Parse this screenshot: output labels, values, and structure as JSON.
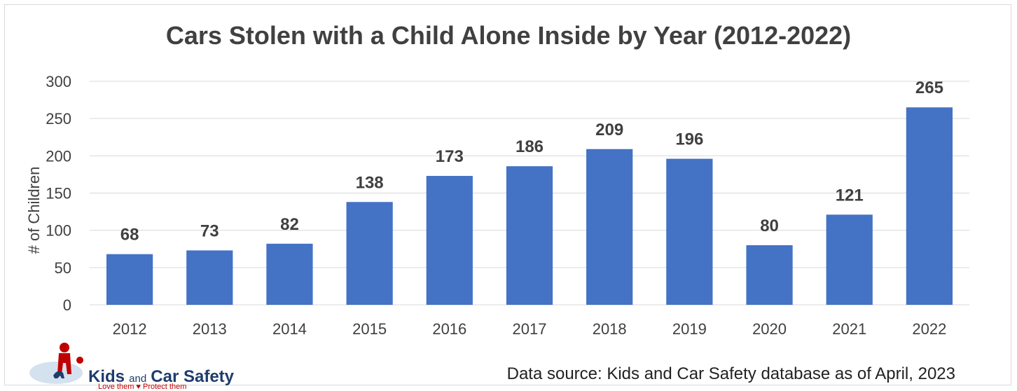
{
  "chart_data": {
    "type": "bar",
    "title": "Cars Stolen with a Child Alone Inside by Year (2012-2022)",
    "ylabel": "# of Children",
    "categories": [
      "2012",
      "2013",
      "2014",
      "2015",
      "2016",
      "2017",
      "2018",
      "2019",
      "2020",
      "2021",
      "2022"
    ],
    "values": [
      68,
      73,
      82,
      138,
      173,
      186,
      209,
      196,
      80,
      121,
      265
    ],
    "ylim": [
      0,
      300
    ],
    "yticks": [
      0,
      50,
      100,
      150,
      200,
      250,
      300
    ],
    "bar_color": "#4472C4",
    "grid": true,
    "data_labels": true
  },
  "footer": {
    "source": "Data source: Kids and Car Safety database as of April, 2023"
  },
  "logo": {
    "name_part1": "Kids",
    "name_part2": "and",
    "name_part3": "Car Safety",
    "tagline": "Love them ♥ Protect them"
  }
}
